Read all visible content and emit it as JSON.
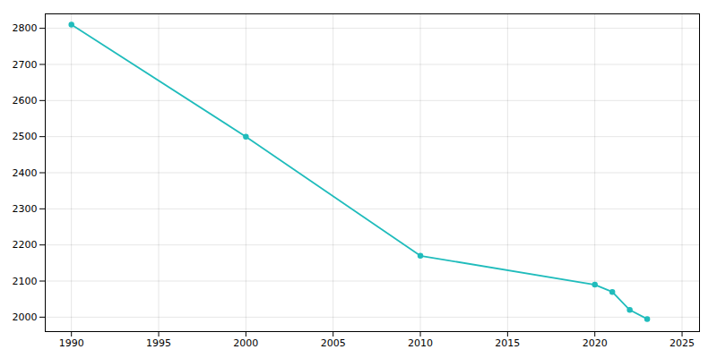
{
  "chart_data": {
    "type": "line",
    "x": [
      1990,
      2000,
      2010,
      2020,
      2021,
      2022,
      2023
    ],
    "values": [
      2810,
      2500,
      2170,
      2090,
      2070,
      2020,
      1995
    ],
    "color": "#20bcbc",
    "marker": "circle",
    "xlim": [
      1988.5,
      2026
    ],
    "ylim": [
      1960,
      2840
    ],
    "xticks": [
      1990,
      1995,
      2000,
      2005,
      2010,
      2015,
      2020,
      2025
    ],
    "yticks": [
      2000,
      2100,
      2200,
      2300,
      2400,
      2500,
      2600,
      2700,
      2800
    ],
    "grid": true
  }
}
